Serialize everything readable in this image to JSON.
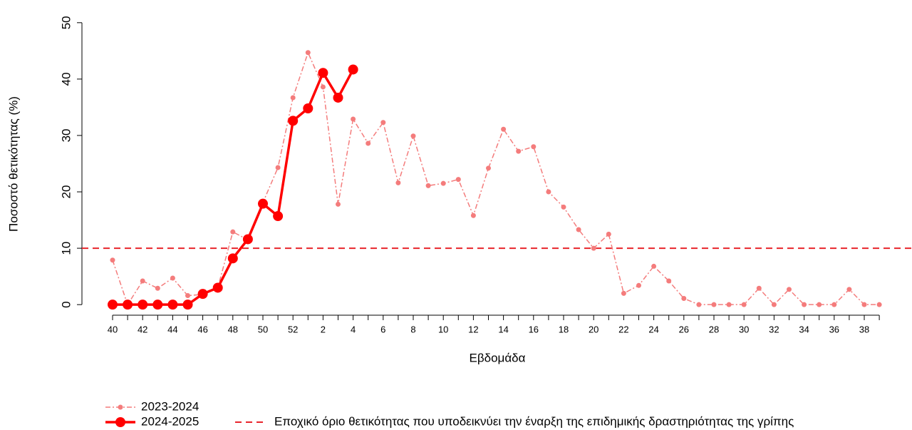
{
  "chart_data": {
    "type": "line",
    "y_label": "Ποσοστό θετικότητας (%)",
    "x_label": "Εβδομάδα",
    "categories": [
      "40",
      null,
      "42",
      null,
      "44",
      null,
      "46",
      null,
      "48",
      null,
      "50",
      null,
      "52",
      null,
      "2",
      null,
      "4",
      null,
      "6",
      null,
      "8",
      null,
      "10",
      null,
      "12",
      null,
      "14",
      null,
      "16",
      null,
      "18",
      null,
      "20",
      null,
      "22",
      null,
      "24",
      null,
      "26",
      null,
      "28",
      null,
      "30",
      null,
      "32",
      null,
      "34",
      null,
      "36",
      null,
      "38",
      null
    ],
    "series": [
      {
        "name": "2023-2024",
        "color": "#f47c7c",
        "style": "dashdot",
        "marker_size": 3.5,
        "width": 1.5,
        "values": [
          7.9,
          0,
          4.2,
          2.9,
          4.7,
          1.6,
          1.8,
          3.0,
          12.9,
          11.5,
          18.1,
          24.3,
          36.7,
          44.7,
          38.6,
          17.8,
          32.9,
          28.6,
          32.3,
          21.6,
          29.9,
          21.1,
          21.5,
          22.2,
          15.8,
          24.2,
          31.1,
          27.2,
          28.0,
          20.0,
          17.3,
          13.3,
          10.0,
          12.5,
          2.0,
          3.4,
          6.8,
          4.2,
          1.1,
          0,
          0,
          0,
          0,
          2.9,
          0,
          2.7,
          0,
          0,
          0,
          2.7,
          0,
          0
        ]
      },
      {
        "name": "2024-2025",
        "color": "#ff0000",
        "style": "solid",
        "marker_size": 7,
        "width": 3.5,
        "values": [
          0,
          0,
          0,
          0,
          0,
          0,
          1.9,
          3.0,
          8.2,
          11.6,
          17.9,
          15.7,
          32.6,
          34.8,
          41.1,
          36.7,
          41.7,
          null,
          null,
          null,
          null,
          null,
          null,
          null,
          null,
          null,
          null,
          null,
          null,
          null,
          null,
          null,
          null,
          null,
          null,
          null,
          null,
          null,
          null,
          null,
          null,
          null,
          null,
          null,
          null,
          null,
          null,
          null,
          null,
          null,
          null,
          null
        ]
      }
    ],
    "threshold": {
      "value": 10,
      "label": "Εποχικό όριο θετικότητας που υποδεικνύει την έναρξη της επιδημικής δραστηριότητας της γρίπης",
      "color": "#e8252c"
    },
    "ylim": [
      -2,
      52
    ],
    "yticks": [
      0,
      10,
      20,
      30,
      40,
      50
    ]
  }
}
